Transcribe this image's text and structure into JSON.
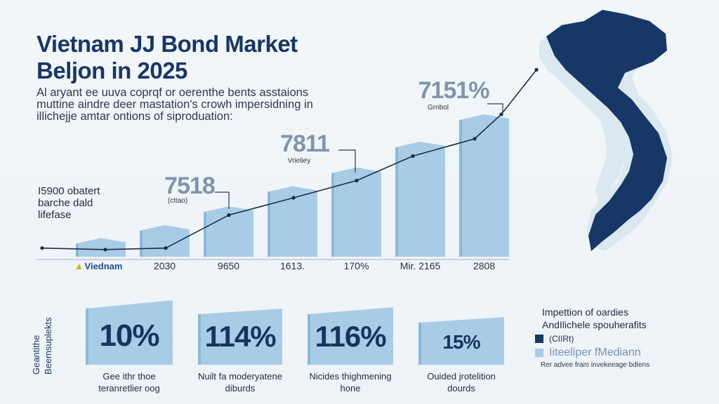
{
  "title": {
    "line1": "Vietnam JJ Bond Market",
    "line2": "Beljon in 2025"
  },
  "subtitle": {
    "line1": "Al aryant ee uuva coprqf or oerenthe bents asstaions",
    "line2": "muttine aindre deer mastation's crowh impersidning in",
    "line3": "illichejje amtar ontions of siproduation:"
  },
  "side_note": {
    "line1": "I5900 obatert",
    "line2": "barche dald",
    "line3": "lifefase"
  },
  "colors": {
    "bar_fill": "#a9cce6",
    "bar_side": "#8ab8da",
    "navy": "#173866",
    "map_land": "#dbe8f0",
    "trend_line": "#1a2c4a"
  },
  "chart_data": {
    "type": "bar",
    "categories": [
      "Viednam",
      "2030",
      "9650",
      "1613.",
      "170%",
      "Mir. 2165",
      "2808"
    ],
    "values": [
      1.3,
      2.2,
      3.5,
      4.9,
      6.2,
      8.0,
      9.9
    ],
    "ylim": [
      0,
      12
    ],
    "trend": [
      0.6,
      0.5,
      0.6,
      2.9,
      4.1,
      5.3,
      7.0,
      8.2,
      9.9,
      13.0
    ],
    "callouts": [
      {
        "value": "7518",
        "label": "(cttao)"
      },
      {
        "value": "7811",
        "label": "Vrieliey"
      },
      {
        "value": "7151%",
        "label": "Grnbol"
      }
    ]
  },
  "tiles_label": {
    "line1": "Geantithe",
    "line2": "Beemsuplekts"
  },
  "tiles": [
    {
      "value": "10%",
      "caption1": "Gee ithr thoe",
      "caption2": "teranretlier oog"
    },
    {
      "value": "114%",
      "caption1": "Nuilt fa moderyatene",
      "caption2": "diburds"
    },
    {
      "value": "116%",
      "caption1": "Nicides thighmening",
      "caption2": "hone"
    },
    {
      "value": "15%",
      "caption1": "Ouided jrotelition",
      "caption2": "dourds"
    }
  ],
  "legend": {
    "title1": "Impettion of oardies",
    "title2": "AndIlichele spouherafits",
    "item1": "(CIIRt)",
    "item2": "Iiteeliper fMediann",
    "note": "Rer advee fram invekeeage bdlens"
  }
}
